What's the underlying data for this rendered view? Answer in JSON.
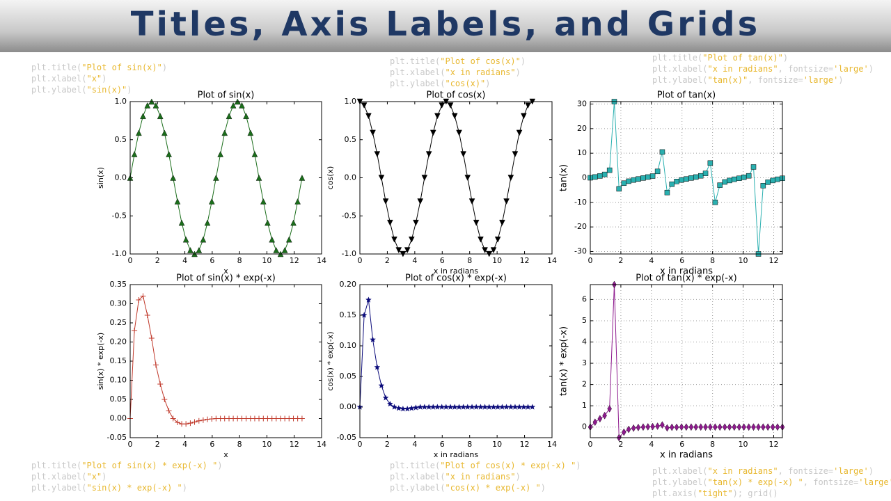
{
  "slide": {
    "title": "Titles, Axis Labels, and Grids",
    "code": [
      [
        "plt.title(\"Plot of sin(x)\")",
        "plt.xlabel(\"x\")",
        "plt.ylabel(\"sin(x)\")"
      ],
      [
        "plt.title(\"Plot of cos(x)\")",
        "plt.xlabel(\"x in radians\")",
        "plt.ylabel(\"cos(x)\")"
      ],
      [
        "plt.title(\"Plot of tan(x)\")",
        "plt.xlabel(\"x in radians\", fontsize='large')",
        "plt.ylabel(\"tan(x)\", fontsize='large')"
      ],
      [
        "plt.title(\"Plot of sin(x) * exp(-x) \")",
        "plt.xlabel(\"x\")",
        "plt.ylabel(\"sin(x) * exp(-x) \")"
      ],
      [
        "plt.title(\"Plot of cos(x) * exp(-x) \")",
        "plt.xlabel(\"x in radians\")",
        "plt.ylabel(\"cos(x) * exp(-x) \")"
      ],
      [
        "plt.xlabel(\"x in radians\", fontsize='large')",
        "plt.ylabel(\"tan(x) * exp(-x) \", fontsize='large')",
        "plt.axis(\"tight\"); grid()"
      ]
    ]
  },
  "chart_data": [
    {
      "type": "line",
      "title": "Plot of sin(x)",
      "xlabel": "x",
      "ylabel": "sin(x)",
      "x": [
        0,
        0.31,
        0.63,
        0.94,
        1.26,
        1.57,
        1.88,
        2.2,
        2.51,
        2.83,
        3.14,
        3.46,
        3.77,
        4.08,
        4.4,
        4.71,
        5.03,
        5.34,
        5.65,
        5.97,
        6.28,
        6.6,
        6.91,
        7.23,
        7.54,
        7.85,
        8.17,
        8.48,
        8.8,
        9.11,
        9.42,
        9.74,
        10.05,
        10.37,
        10.68,
        11.0,
        11.31,
        11.62,
        11.94,
        12.25,
        12.57
      ],
      "series": [
        {
          "color": "#1b6e1b",
          "marker": "^",
          "values": [
            0,
            0.31,
            0.59,
            0.81,
            0.95,
            1,
            0.95,
            0.81,
            0.59,
            0.31,
            0,
            -0.31,
            -0.59,
            -0.81,
            -0.95,
            -1,
            -0.95,
            -0.81,
            -0.59,
            -0.31,
            0,
            0.31,
            0.59,
            0.81,
            0.95,
            1,
            0.95,
            0.81,
            0.59,
            0.31,
            0,
            -0.31,
            -0.59,
            -0.81,
            -0.95,
            -1,
            -0.95,
            -0.81,
            -0.59,
            -0.31,
            0
          ]
        }
      ],
      "xlim": [
        0,
        14
      ],
      "xticks": [
        0,
        2,
        4,
        6,
        8,
        10,
        12,
        14
      ],
      "ylim": [
        -1,
        1
      ],
      "yticks": [
        {
          "value": -1,
          "label": "-1.0"
        },
        -0.5,
        {
          "value": 0,
          "label": "0.0"
        },
        0.5,
        {
          "value": 1,
          "label": "1.0"
        }
      ],
      "grid": false
    },
    {
      "type": "line",
      "title": "Plot of cos(x)",
      "xlabel": "x in radians",
      "ylabel": "cos(x)",
      "x": [
        0,
        0.31,
        0.63,
        0.94,
        1.26,
        1.57,
        1.88,
        2.2,
        2.51,
        2.83,
        3.14,
        3.46,
        3.77,
        4.08,
        4.4,
        4.71,
        5.03,
        5.34,
        5.65,
        5.97,
        6.28,
        6.6,
        6.91,
        7.23,
        7.54,
        7.85,
        8.17,
        8.48,
        8.8,
        9.11,
        9.42,
        9.74,
        10.05,
        10.37,
        10.68,
        11.0,
        11.31,
        11.62,
        11.94,
        12.25,
        12.57
      ],
      "series": [
        {
          "color": "#000000",
          "marker": "v",
          "values": [
            1,
            0.95,
            0.81,
            0.59,
            0.31,
            0,
            -0.31,
            -0.59,
            -0.81,
            -0.95,
            -1,
            -0.95,
            -0.81,
            -0.59,
            -0.31,
            0,
            0.31,
            0.59,
            0.81,
            0.95,
            1,
            0.95,
            0.81,
            0.59,
            0.31,
            0,
            -0.31,
            -0.59,
            -0.81,
            -0.95,
            -1,
            -0.95,
            -0.81,
            -0.59,
            -0.31,
            0,
            0.31,
            0.59,
            0.81,
            0.95,
            1
          ]
        }
      ],
      "xlim": [
        0,
        14
      ],
      "xticks": [
        0,
        2,
        4,
        6,
        8,
        10,
        12,
        14
      ],
      "ylim": [
        -1,
        1
      ],
      "yticks": [
        {
          "value": -1,
          "label": "-1.0"
        },
        -0.5,
        {
          "value": 0,
          "label": "0.0"
        },
        0.5,
        {
          "value": 1,
          "label": "1.0"
        }
      ],
      "grid": false
    },
    {
      "type": "line",
      "title": "Plot of tan(x)",
      "xlabel": "x in radians",
      "ylabel": "tan(x)",
      "label_size": "large",
      "x": [
        0,
        0.31,
        0.63,
        0.94,
        1.26,
        1.57,
        1.88,
        2.2,
        2.51,
        2.83,
        3.14,
        3.46,
        3.77,
        4.08,
        4.4,
        4.71,
        5.03,
        5.34,
        5.65,
        5.97,
        6.28,
        6.6,
        6.91,
        7.23,
        7.54,
        7.85,
        8.17,
        8.48,
        8.8,
        9.11,
        9.42,
        9.74,
        10.05,
        10.37,
        10.68,
        11.0,
        11.31,
        11.62,
        11.94,
        12.25,
        12.57
      ],
      "series": [
        {
          "color": "#2ab0b0",
          "marker": "s",
          "values": [
            0,
            0.32,
            0.73,
            1.38,
            3.08,
            31,
            -4.5,
            -2.2,
            -1.4,
            -0.9,
            -0.5,
            -0.1,
            0.3,
            0.7,
            2.6,
            10.5,
            -6,
            -2.6,
            -1.5,
            -0.9,
            -0.5,
            -0.1,
            0.3,
            0.8,
            1.8,
            6,
            -10,
            -3,
            -1.7,
            -1.1,
            -0.6,
            -0.2,
            0.2,
            0.8,
            4.4,
            -31,
            -3.2,
            -1.8,
            -1.1,
            -0.6,
            -0.2
          ]
        }
      ],
      "xlim": [
        0,
        12.57
      ],
      "xticks": [
        0,
        2,
        4,
        6,
        8,
        10,
        12
      ],
      "ylim": [
        -31,
        31
      ],
      "yticks": [
        -30,
        -20,
        -10,
        0,
        10,
        20,
        30
      ],
      "grid": true
    },
    {
      "type": "line",
      "title": "Plot of sin(x) * exp(-x)",
      "xlabel": "x",
      "ylabel": "sin(x) * exp(-x)",
      "x": [
        0,
        0.31,
        0.63,
        0.94,
        1.26,
        1.57,
        1.88,
        2.2,
        2.51,
        2.83,
        3.14,
        3.46,
        3.77,
        4.08,
        4.4,
        4.71,
        5.03,
        5.34,
        5.65,
        5.97,
        6.28,
        6.6,
        6.91,
        7.23,
        7.54,
        7.85,
        8.17,
        8.48,
        8.8,
        9.11,
        9.42,
        9.74,
        10.05,
        10.37,
        10.68,
        11.0,
        11.31,
        11.62,
        11.94,
        12.25,
        12.57
      ],
      "series": [
        {
          "color": "#c0392b",
          "marker": "+",
          "values": [
            0,
            0.23,
            0.31,
            0.32,
            0.27,
            0.21,
            0.14,
            0.09,
            0.05,
            0.02,
            0,
            -0.01,
            -0.014,
            -0.014,
            -0.012,
            -0.009,
            -0.006,
            -0.004,
            -0.002,
            -0.001,
            0,
            0,
            0,
            0,
            0,
            0,
            0,
            0,
            0,
            0,
            0,
            0,
            0,
            0,
            0,
            0,
            0,
            0,
            0,
            0,
            0
          ]
        }
      ],
      "xlim": [
        0,
        14
      ],
      "xticks": [
        0,
        2,
        4,
        6,
        8,
        10,
        12,
        14
      ],
      "ylim": [
        -0.05,
        0.35
      ],
      "yticks": [
        -0.05,
        {
          "value": 0,
          "label": "0.00"
        },
        0.05,
        {
          "value": 0.1,
          "label": "0.10"
        },
        0.15,
        {
          "value": 0.2,
          "label": "0.20"
        },
        0.25,
        {
          "value": 0.3,
          "label": "0.30"
        },
        0.35
      ],
      "grid": false
    },
    {
      "type": "line",
      "title": "Plot of cos(x) * exp(-x)",
      "xlabel": "x in radians",
      "ylabel": "cos(x) * exp(-x)",
      "x": [
        0,
        0.31,
        0.63,
        0.94,
        1.26,
        1.57,
        1.88,
        2.2,
        2.51,
        2.83,
        3.14,
        3.46,
        3.77,
        4.08,
        4.4,
        4.71,
        5.03,
        5.34,
        5.65,
        5.97,
        6.28,
        6.6,
        6.91,
        7.23,
        7.54,
        7.85,
        8.17,
        8.48,
        8.8,
        9.11,
        9.42,
        9.74,
        10.05,
        10.37,
        10.68,
        11.0,
        11.31,
        11.62,
        11.94,
        12.25,
        12.57
      ],
      "series": [
        {
          "color": "#0a0a7a",
          "marker": "*",
          "values": [
            0,
            0.15,
            0.175,
            0.11,
            0.065,
            0.035,
            0.015,
            0.005,
            0,
            -0.002,
            -0.003,
            -0.003,
            -0.002,
            -0.001,
            0,
            0,
            0,
            0,
            0,
            0,
            0,
            0,
            0,
            0,
            0,
            0,
            0,
            0,
            0,
            0,
            0,
            0,
            0,
            0,
            0,
            0,
            0,
            0,
            0,
            0,
            0
          ]
        }
      ],
      "xlim": [
        0,
        14
      ],
      "xticks": [
        0,
        2,
        4,
        6,
        8,
        10,
        12,
        14
      ],
      "ylim": [
        -0.05,
        0.2
      ],
      "yticks": [
        -0.05,
        {
          "value": 0,
          "label": "0.00"
        },
        0.05,
        {
          "value": 0.1,
          "label": "0.10"
        },
        0.15,
        {
          "value": 0.2,
          "label": "0.20"
        }
      ],
      "grid": false
    },
    {
      "type": "line",
      "title": "Plot of tan(x) * exp(-x)",
      "xlabel": "x in radians",
      "ylabel": "tan(x) * exp(-x)",
      "label_size": "large",
      "x": [
        0,
        0.31,
        0.63,
        0.94,
        1.26,
        1.57,
        1.88,
        2.2,
        2.51,
        2.83,
        3.14,
        3.46,
        3.77,
        4.08,
        4.4,
        4.71,
        5.03,
        5.34,
        5.65,
        5.97,
        6.28,
        6.6,
        6.91,
        7.23,
        7.54,
        7.85,
        8.17,
        8.48,
        8.8,
        9.11,
        9.42,
        9.74,
        10.05,
        10.37,
        10.68,
        11.0,
        11.31,
        11.62,
        11.94,
        12.25,
        12.57
      ],
      "series": [
        {
          "color": "#8e1a8e",
          "marker": "d",
          "values": [
            0,
            0.23,
            0.39,
            0.54,
            0.86,
            6.7,
            -0.5,
            -0.24,
            -0.11,
            -0.05,
            -0.02,
            0,
            0.01,
            0.02,
            0.04,
            0.1,
            -0.04,
            -0.01,
            -0.01,
            0,
            0,
            0,
            0,
            0,
            0,
            0,
            0,
            0,
            0,
            0,
            0,
            0,
            0,
            0,
            0,
            0,
            0,
            0,
            0,
            0,
            0
          ]
        }
      ],
      "xlim": [
        0,
        12.57
      ],
      "xticks": [
        0,
        2,
        4,
        6,
        8,
        10,
        12
      ],
      "ylim": [
        -0.5,
        6.7
      ],
      "yticks": [
        0,
        1,
        2,
        3,
        4,
        5,
        6
      ],
      "grid": true
    }
  ]
}
